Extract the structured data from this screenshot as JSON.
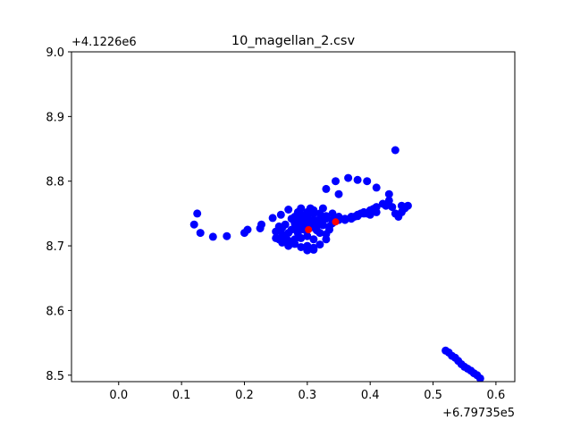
{
  "chart_data": {
    "type": "scatter",
    "title": "10_magellan_2.csv",
    "xlabel": "",
    "ylabel": "",
    "x_offset_label": "+6.79735e5",
    "y_offset_label": "+4.1226e6",
    "xlim": [
      -0.075,
      0.63
    ],
    "ylim": [
      8.49,
      9.0
    ],
    "xticks": [
      0.0,
      0.1,
      0.2,
      0.3,
      0.4,
      0.5,
      0.6
    ],
    "xtick_labels": [
      "0.0",
      "0.1",
      "0.2",
      "0.3",
      "0.4",
      "0.5",
      "0.6"
    ],
    "yticks": [
      8.5,
      8.6,
      8.7,
      8.8,
      8.9,
      9.0
    ],
    "ytick_labels": [
      "8.5",
      "8.6",
      "8.7",
      "8.8",
      "8.9",
      "9.0"
    ],
    "grid": false,
    "colors": {
      "primary": "#0000ff",
      "highlight": "#ff0000"
    },
    "series": [
      {
        "color": "#0000ff",
        "x": [
          0.12,
          0.125,
          0.13,
          0.15,
          0.172,
          0.2,
          0.205,
          0.225,
          0.227,
          0.245,
          0.25,
          0.255,
          0.258,
          0.26,
          0.265,
          0.27,
          0.275,
          0.28,
          0.285,
          0.29,
          0.295,
          0.3,
          0.305,
          0.31,
          0.315,
          0.32,
          0.325,
          0.33,
          0.335,
          0.34,
          0.26,
          0.27,
          0.28,
          0.29,
          0.3,
          0.31,
          0.32,
          0.33,
          0.34,
          0.25,
          0.26,
          0.27,
          0.28,
          0.29,
          0.3,
          0.31,
          0.32,
          0.33,
          0.34,
          0.255,
          0.265,
          0.275,
          0.285,
          0.295,
          0.305,
          0.315,
          0.325,
          0.335,
          0.27,
          0.28,
          0.29,
          0.3,
          0.31,
          0.32,
          0.33,
          0.28,
          0.29,
          0.3,
          0.31,
          0.32,
          0.285,
          0.295,
          0.305,
          0.315,
          0.3,
          0.31,
          0.34,
          0.35,
          0.36,
          0.37,
          0.375,
          0.38,
          0.385,
          0.39,
          0.395,
          0.4,
          0.405,
          0.41,
          0.35,
          0.36,
          0.37,
          0.38,
          0.39,
          0.4,
          0.41,
          0.33,
          0.345,
          0.35,
          0.365,
          0.38,
          0.395,
          0.41,
          0.42,
          0.43,
          0.43,
          0.435,
          0.44,
          0.445,
          0.45,
          0.455,
          0.46,
          0.45,
          0.44,
          0.425,
          0.52,
          0.525,
          0.53,
          0.535,
          0.54,
          0.545,
          0.55,
          0.555,
          0.56,
          0.565,
          0.57,
          0.575
        ],
        "y": [
          8.733,
          8.75,
          8.72,
          8.714,
          8.715,
          8.72,
          8.725,
          8.727,
          8.733,
          8.743,
          8.712,
          8.73,
          8.748,
          8.718,
          8.733,
          8.756,
          8.742,
          8.728,
          8.752,
          8.758,
          8.737,
          8.745,
          8.758,
          8.75,
          8.73,
          8.742,
          8.758,
          8.746,
          8.73,
          8.75,
          8.705,
          8.708,
          8.71,
          8.712,
          8.715,
          8.71,
          8.72,
          8.718,
          8.735,
          8.722,
          8.728,
          8.72,
          8.735,
          8.73,
          8.732,
          8.74,
          8.735,
          8.742,
          8.74,
          8.71,
          8.715,
          8.725,
          8.72,
          8.725,
          8.728,
          8.724,
          8.732,
          8.725,
          8.7,
          8.703,
          8.698,
          8.7,
          8.697,
          8.702,
          8.71,
          8.745,
          8.748,
          8.752,
          8.755,
          8.75,
          8.738,
          8.742,
          8.735,
          8.738,
          8.693,
          8.694,
          8.738,
          8.74,
          8.742,
          8.745,
          8.745,
          8.748,
          8.75,
          8.752,
          8.75,
          8.755,
          8.757,
          8.76,
          8.745,
          8.74,
          8.742,
          8.746,
          8.75,
          8.748,
          8.752,
          8.788,
          8.8,
          8.78,
          8.805,
          8.802,
          8.8,
          8.79,
          8.765,
          8.78,
          8.77,
          8.76,
          8.848,
          8.745,
          8.762,
          8.758,
          8.762,
          8.752,
          8.75,
          8.762,
          8.538,
          8.535,
          8.53,
          8.527,
          8.522,
          8.517,
          8.513,
          8.51,
          8.507,
          8.503,
          8.5,
          8.495
        ]
      },
      {
        "color": "#ff0000",
        "x": [
          0.302,
          0.345
        ],
        "y": [
          8.725,
          8.737
        ]
      }
    ]
  }
}
